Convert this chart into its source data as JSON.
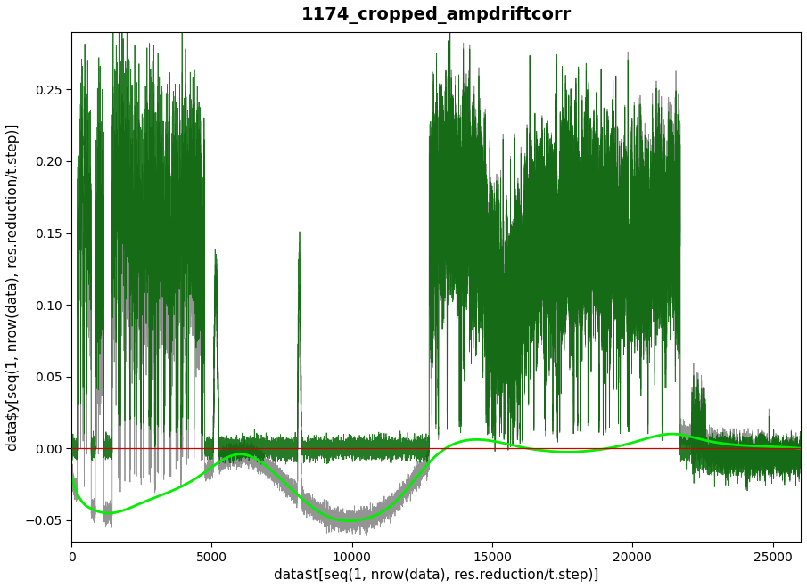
{
  "title": "1174_cropped_ampdriftcorr",
  "xlabel": "data$t[seq(1, nrow(data), res.reduction/t.step)]",
  "ylabel": "data$y[seq(1, nrow(data), res.reduction/t.step)]",
  "xlim": [
    0,
    26000
  ],
  "ylim": [
    -0.065,
    0.29
  ],
  "yticks": [
    -0.05,
    0.0,
    0.05,
    0.1,
    0.15,
    0.2,
    0.25
  ],
  "xticks": [
    0,
    5000,
    10000,
    15000,
    20000,
    25000
  ],
  "gray_color": "#888888",
  "green_color": "#006400",
  "spline_color": "#00ee00",
  "red_color": "#cc0000",
  "bg_color": "#ffffff",
  "title_fontsize": 14,
  "label_fontsize": 11,
  "n_points": 26000,
  "seed": 42
}
